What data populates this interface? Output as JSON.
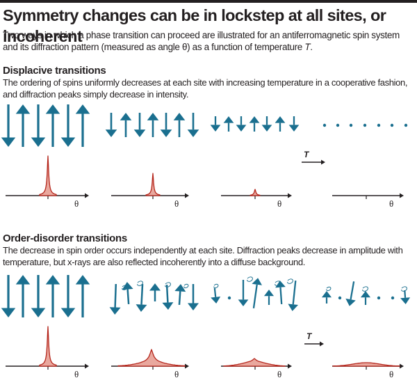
{
  "title": "Symmetry changes can be in lockstep at all sites, or incoherent",
  "intro": {
    "text_a": "Two ways in which a phase transition can proceed are illustrated for an antiferromagnetic spin system and its diffraction pattern (measured as angle θ) as a function of temperature ",
    "temp_symbol": "T",
    "text_b": "."
  },
  "displacive": {
    "heading": "Displacive transitions",
    "body": "The ordering of spins uniformly decreases at each site with increasing temperature in a cooperative fashion, and diffraction peaks simply decrease in intensity."
  },
  "order_disorder": {
    "heading": "Order-disorder transitions",
    "body": "The decrease in spin order occurs independently at each site. Diffraction peaks decrease in amplitude with temperature, but x-rays are also reflected incoherently into a diffuse background."
  },
  "axis_label": "θ",
  "temperature_label": "T",
  "colors": {
    "spin": "#1a6f8f",
    "peak_fill": "#e9a89e",
    "peak_line": "#b5261c",
    "ink": "#231f20"
  }
}
